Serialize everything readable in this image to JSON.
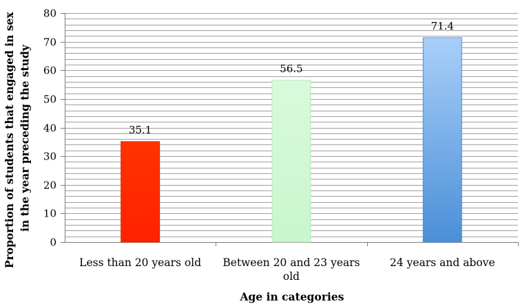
{
  "chart_data": {
    "type": "bar",
    "title": "",
    "xlabel": "Age in categories",
    "ylabel_lines": [
      "Proportion of students that engaged in sex",
      "in the year preceding the study"
    ],
    "categories": [
      [
        "Less than 20 years old"
      ],
      [
        "Between 20 and 23 years",
        "old"
      ],
      [
        "24 years and above"
      ]
    ],
    "values": [
      35.1,
      56.5,
      71.4
    ],
    "value_labels": [
      "35.1",
      "56.5",
      "71.4"
    ],
    "ylim": [
      0,
      80
    ],
    "yticks": [
      0,
      10,
      20,
      30,
      40,
      50,
      60,
      70,
      80
    ],
    "minor_gridline_step": 2,
    "grid": true,
    "legend": "none",
    "colors": {
      "bars": [
        {
          "top": "#ff3300",
          "bottom": "#ff2200",
          "stroke": "#e02000"
        },
        {
          "top": "#d9fadb",
          "bottom": "#c9f6cc",
          "stroke": "#b8e8bb"
        },
        {
          "top": "#a9cff9",
          "bottom": "#4a8fd8",
          "stroke": "#4a8fd8"
        }
      ],
      "grid": "#9e9e9e",
      "axis": "#7a7a7a",
      "text": "#000000"
    }
  }
}
